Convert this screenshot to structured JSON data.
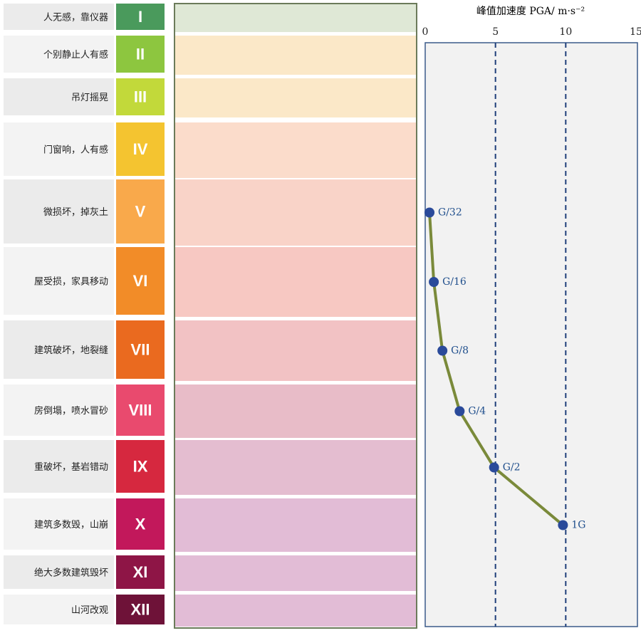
{
  "levels": [
    {
      "roman": "I",
      "description": "人无感，靠仪器",
      "color": "#4a9a5c"
    },
    {
      "roman": "II",
      "description": "个别静止人有感",
      "color": "#8dc63f"
    },
    {
      "roman": "III",
      "description": "吊灯摇晃",
      "color": "#c2d93a"
    },
    {
      "roman": "IV",
      "description": "门窗响，人有感",
      "color": "#f4c430"
    },
    {
      "roman": "V",
      "description": "微损坏，掉灰土",
      "color": "#f9a94b"
    },
    {
      "roman": "VI",
      "description": "屋受损，家具移动",
      "color": "#f28c28"
    },
    {
      "roman": "VII",
      "description": "建筑破坏，地裂缝",
      "color": "#ea6a1f"
    },
    {
      "roman": "VIII",
      "description": "房倒塌，喷水冒砂",
      "color": "#e94a6e"
    },
    {
      "roman": "IX",
      "description": "重破坏，基岩错动",
      "color": "#d6283f"
    },
    {
      "roman": "X",
      "description": "建筑多数毁，山崩",
      "color": "#c2185b"
    },
    {
      "roman": "XI",
      "description": "绝大多数建筑毁坏",
      "color": "#8e1546"
    },
    {
      "roman": "XII",
      "description": "山河改观",
      "color": "#6e1238"
    }
  ],
  "chart_data": {
    "type": "scatter",
    "xlabel": "峰值加速度 PGA/ m·s⁻²",
    "xlim": [
      0,
      15
    ],
    "xticks": [
      0,
      5,
      10,
      15
    ],
    "dashed_grid": [
      5,
      10
    ],
    "point_color": "#2a4a9a",
    "curve_color": "#7a8a3a",
    "series": [
      {
        "values": [
          null,
          null,
          null,
          null,
          0.306,
          0.613,
          1.225,
          2.45,
          4.9,
          9.8,
          null,
          null
        ],
        "value_labels": [
          null,
          null,
          null,
          null,
          "G/32",
          "G/16",
          "G/8",
          "G/4",
          "G/2",
          "1G",
          null,
          null
        ]
      }
    ]
  }
}
